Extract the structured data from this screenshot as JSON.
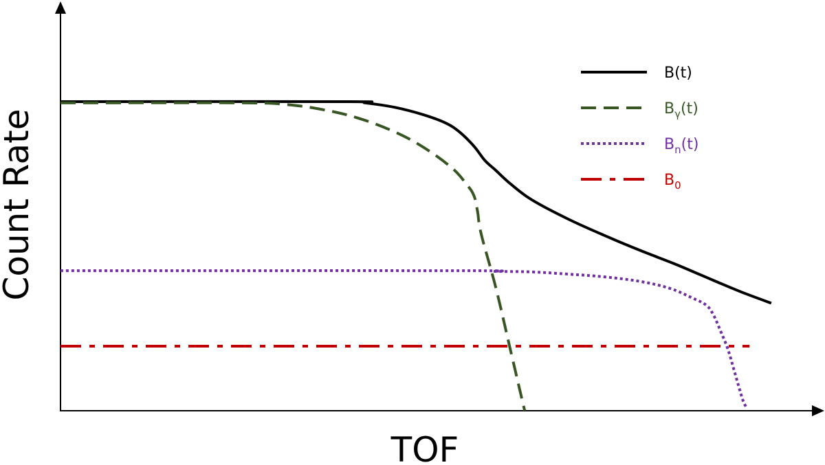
{
  "chart_data": {
    "type": "line",
    "title": "",
    "xlabel": "TOF",
    "ylabel": "Count Rate",
    "ticks": "none",
    "grid": false,
    "legend_position": "top-right",
    "series": [
      {
        "name": "B",
        "label_suffix": "(t)",
        "subscript": "",
        "color": "#000000",
        "style": "solid",
        "points": [
          [
            0,
            100
          ],
          [
            39,
            100
          ],
          [
            42,
            99.6
          ],
          [
            46,
            98.2
          ],
          [
            50,
            95.8
          ],
          [
            53,
            93.2
          ],
          [
            55,
            90.2
          ],
          [
            57,
            85.6
          ],
          [
            58.5,
            81
          ],
          [
            60,
            77.8
          ],
          [
            62,
            73.5
          ],
          [
            65,
            68.2
          ],
          [
            70,
            62
          ],
          [
            75,
            56.7
          ],
          [
            80,
            51.8
          ],
          [
            85,
            47.2
          ],
          [
            90,
            42.2
          ],
          [
            94,
            38.3
          ],
          [
            98,
            34.8
          ]
        ]
      },
      {
        "name": "B",
        "label_suffix": "(t)",
        "subscript": "γ",
        "color": "#375623",
        "style": "dashed",
        "points": [
          [
            0,
            99.6
          ],
          [
            25,
            99.6
          ],
          [
            31,
            99.1
          ],
          [
            36,
            97.5
          ],
          [
            41,
            94.7
          ],
          [
            46,
            90.3
          ],
          [
            50,
            85.3
          ],
          [
            54,
            78.5
          ],
          [
            56,
            73.2
          ],
          [
            57,
            69.6
          ],
          [
            57.5,
            64.5
          ],
          [
            58,
            57.2
          ],
          [
            60,
            40
          ],
          [
            62,
            20
          ],
          [
            63,
            10
          ],
          [
            64,
            0
          ]
        ]
      },
      {
        "name": "B",
        "label_suffix": "(t)",
        "subscript": "n",
        "color": "#7030a0",
        "style": "dotted",
        "points": [
          [
            0,
            45.3
          ],
          [
            55,
            45.3
          ],
          [
            60,
            45.1
          ],
          [
            65,
            44.9
          ],
          [
            70,
            44.2
          ],
          [
            75,
            43.3
          ],
          [
            80,
            41.8
          ],
          [
            84,
            39.6
          ],
          [
            87,
            36.6
          ],
          [
            89,
            34.2
          ],
          [
            90,
            31.1
          ],
          [
            91,
            25.8
          ],
          [
            92,
            20
          ],
          [
            93,
            12
          ],
          [
            94,
            4
          ],
          [
            94.5,
            1.3
          ]
        ]
      },
      {
        "name": "B",
        "label_suffix": "",
        "subscript": "0",
        "color": "#c00000",
        "style": "dash-dot",
        "points": [
          [
            0,
            20.9
          ],
          [
            95,
            20.9
          ]
        ]
      }
    ]
  }
}
